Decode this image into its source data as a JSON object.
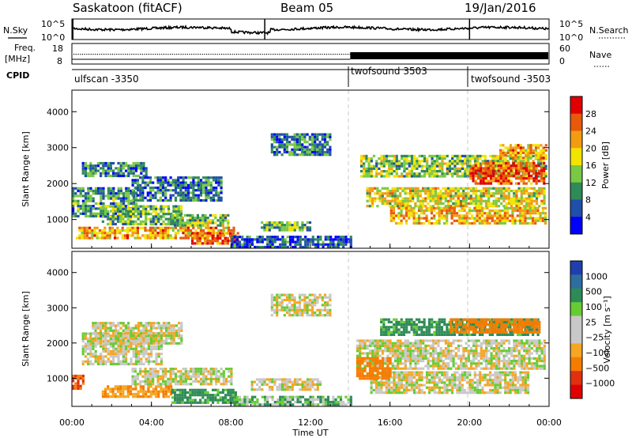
{
  "header": {
    "title": "Saskatoon (fitACF)",
    "beam": "Beam 05",
    "date": "19/Jan/2016"
  },
  "top_panels": {
    "nsky_label": "N.Sky",
    "nsearch_label": "N.Search",
    "noise_ticks": [
      "10^5",
      "10^0"
    ],
    "freq_label": "Freq.",
    "freq_unit": "[MHz]",
    "freq_ticks": [
      "18",
      "8"
    ],
    "nave_label": "Nave",
    "nave_ticks": [
      "60",
      "0"
    ],
    "cpid_label": "CPID",
    "cpid_segments": [
      {
        "start": "00:00",
        "end": "14:00",
        "name": "ulfscan -3350"
      },
      {
        "start": "14:00",
        "end": "20:00",
        "name": "twofsound 3503"
      },
      {
        "start": "20:00",
        "end": "24:00",
        "name": "twofsound -3503"
      }
    ]
  },
  "x_axis": {
    "title": "Time UT",
    "ticks": [
      "00:00",
      "04:00",
      "08:00",
      "12:00",
      "16:00",
      "20:00",
      "00:00"
    ]
  },
  "panels": [
    {
      "ylabel": "Slant Range [km]",
      "yticks": [
        "1000",
        "2000",
        "3000",
        "4000"
      ],
      "colorbar_title": "Power [dB]",
      "colorbar_labels": [
        "4",
        "8",
        "12",
        "16",
        "20",
        "24",
        "28"
      ],
      "colors": [
        "#0000ff",
        "#1f4fa8",
        "#2e8b57",
        "#7ac943",
        "#f2e400",
        "#f39c12",
        "#e8590c",
        "#e00000"
      ]
    },
    {
      "ylabel": "Slant Range [km]",
      "yticks": [
        "1000",
        "2000",
        "3000",
        "4000"
      ],
      "colorbar_title": "Velocity [m s⁻¹]",
      "colorbar_labels": [
        "1000",
        "500",
        "100",
        "25",
        "−25",
        "−100",
        "−500",
        "−1000"
      ],
      "colors": [
        "#1f3fb0",
        "#2e6e9e",
        "#2e8b57",
        "#66cc33",
        "#c8c8c8",
        "#c8c8c8",
        "#f5a623",
        "#f57c00",
        "#e03010",
        "#e00000"
      ]
    }
  ],
  "chart_data": [
    {
      "type": "heatmap",
      "title": "Saskatoon (fitACF)  Beam 05  19/Jan/2016",
      "xlabel": "Time UT",
      "ylabel": "Slant Range [km]",
      "xlim": [
        0,
        24
      ],
      "ylim": [
        200,
        4600
      ],
      "colorbar": {
        "label": "Power [dB]",
        "range": [
          0,
          32
        ]
      },
      "regions": [
        {
          "t0": 0.0,
          "t1": 3.2,
          "r0": 1100,
          "r1": 1900,
          "value": 10
        },
        {
          "t0": 0.5,
          "t1": 3.8,
          "r0": 2200,
          "r1": 2600,
          "value": 9
        },
        {
          "t0": 1.5,
          "t1": 5.5,
          "r0": 900,
          "r1": 1400,
          "value": 12
        },
        {
          "t0": 3.0,
          "t1": 7.5,
          "r0": 1500,
          "r1": 2200,
          "value": 8
        },
        {
          "t0": 5.0,
          "t1": 7.8,
          "r0": 800,
          "r1": 1150,
          "value": 14
        },
        {
          "t0": 0.2,
          "t1": 8.2,
          "r0": 500,
          "r1": 800,
          "value": 22
        },
        {
          "t0": 6.0,
          "t1": 8.3,
          "r0": 350,
          "r1": 650,
          "value": 26
        },
        {
          "t0": 8.0,
          "t1": 14.0,
          "r0": 220,
          "r1": 550,
          "value": 6
        },
        {
          "t0": 9.5,
          "t1": 12.0,
          "r0": 700,
          "r1": 950,
          "value": 12
        },
        {
          "t0": 10.0,
          "t1": 13.0,
          "r0": 2800,
          "r1": 3400,
          "value": 9
        },
        {
          "t0": 14.5,
          "t1": 23.8,
          "r0": 2200,
          "r1": 2800,
          "value": 14
        },
        {
          "t0": 14.8,
          "t1": 23.8,
          "r0": 1400,
          "r1": 1900,
          "value": 18
        },
        {
          "t0": 16.0,
          "t1": 23.8,
          "r0": 900,
          "r1": 1350,
          "value": 21
        },
        {
          "t0": 20.0,
          "t1": 23.8,
          "r0": 2000,
          "r1": 2600,
          "value": 26
        },
        {
          "t0": 21.5,
          "t1": 23.8,
          "r0": 2700,
          "r1": 3100,
          "value": 22
        }
      ]
    },
    {
      "type": "heatmap",
      "xlabel": "Time UT",
      "ylabel": "Slant Range [km]",
      "xlim": [
        0,
        24
      ],
      "ylim": [
        200,
        4600
      ],
      "colorbar": {
        "label": "Velocity [m s⁻¹]",
        "range": [
          -1000,
          1000
        ]
      },
      "regions": [
        {
          "t0": 0.0,
          "t1": 0.6,
          "r0": 700,
          "r1": 1100,
          "value": -500
        },
        {
          "t0": 0.5,
          "t1": 4.5,
          "r0": 1400,
          "r1": 2300,
          "value": 0
        },
        {
          "t0": 1.0,
          "t1": 5.5,
          "r0": 2000,
          "r1": 2600,
          "value": 0
        },
        {
          "t0": 1.5,
          "t1": 5.0,
          "r0": 500,
          "r1": 800,
          "value": -100
        },
        {
          "t0": 3.0,
          "t1": 8.0,
          "r0": 800,
          "r1": 1300,
          "value": 0
        },
        {
          "t0": 5.0,
          "t1": 8.2,
          "r0": 300,
          "r1": 700,
          "value": 100
        },
        {
          "t0": 8.0,
          "t1": 14.0,
          "r0": 220,
          "r1": 500,
          "value": 50
        },
        {
          "t0": 9.0,
          "t1": 12.5,
          "r0": 700,
          "r1": 1000,
          "value": 0
        },
        {
          "t0": 10.0,
          "t1": 13.0,
          "r0": 2800,
          "r1": 3400,
          "value": 0
        },
        {
          "t0": 14.3,
          "t1": 23.8,
          "r0": 1300,
          "r1": 2100,
          "value": 0
        },
        {
          "t0": 15.0,
          "t1": 23.0,
          "r0": 600,
          "r1": 1200,
          "value": 0
        },
        {
          "t0": 15.5,
          "t1": 23.5,
          "r0": 2200,
          "r1": 2700,
          "value": 100
        },
        {
          "t0": 19.0,
          "t1": 23.5,
          "r0": 2300,
          "r1": 2700,
          "value": -300
        },
        {
          "t0": 14.3,
          "t1": 16.0,
          "r0": 1000,
          "r1": 1600,
          "value": -400
        }
      ]
    }
  ]
}
